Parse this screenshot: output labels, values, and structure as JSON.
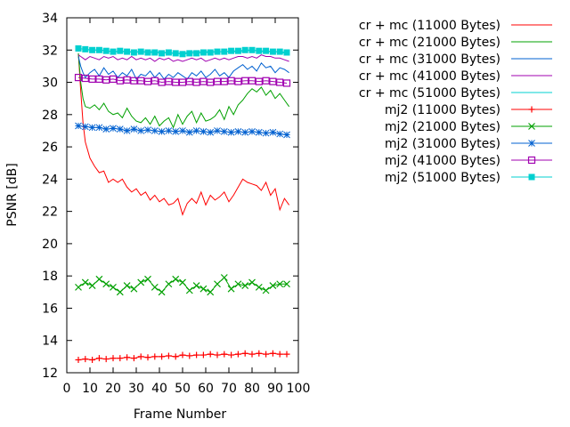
{
  "chart_data": {
    "type": "line",
    "title": "",
    "xlabel": "Frame Number",
    "ylabel": "PSNR [dB]",
    "xlim": [
      0,
      100
    ],
    "ylim": [
      12,
      34
    ],
    "xticks": [
      0,
      10,
      20,
      30,
      40,
      50,
      60,
      70,
      80,
      90,
      100
    ],
    "yticks": [
      12,
      14,
      16,
      18,
      20,
      22,
      24,
      26,
      28,
      30,
      32,
      34
    ],
    "grid": false,
    "legend_position": "top-right, outside plot",
    "series": [
      {
        "name": "cr + mc (11000 Bytes)",
        "color": "#ff0000",
        "marker": "none",
        "x": [
          5,
          6,
          7,
          8,
          10,
          12,
          14,
          16,
          18,
          20,
          22,
          24,
          26,
          28,
          30,
          32,
          34,
          36,
          38,
          40,
          42,
          44,
          46,
          48,
          50,
          52,
          54,
          56,
          58,
          60,
          62,
          64,
          66,
          68,
          70,
          72,
          74,
          76,
          78,
          80,
          82,
          84,
          86,
          88,
          90,
          92,
          94,
          96
        ],
        "y": [
          31.8,
          29.5,
          27.5,
          26.3,
          25.3,
          24.8,
          24.4,
          24.5,
          23.8,
          24.0,
          23.8,
          24.0,
          23.5,
          23.2,
          23.4,
          23.0,
          23.2,
          22.7,
          23.0,
          22.6,
          22.8,
          22.4,
          22.5,
          22.8,
          21.8,
          22.5,
          22.8,
          22.5,
          23.2,
          22.4,
          23.0,
          22.7,
          22.9,
          23.2,
          22.6,
          23.0,
          23.5,
          24.0,
          23.8,
          23.7,
          23.6,
          23.3,
          23.8,
          23.0,
          23.4,
          22.1,
          22.8,
          22.4
        ]
      },
      {
        "name": "cr + mc (21000 Bytes)",
        "color": "#00a000",
        "marker": "none",
        "x": [
          5,
          6,
          7,
          8,
          10,
          12,
          14,
          16,
          18,
          20,
          22,
          24,
          26,
          28,
          30,
          32,
          34,
          36,
          38,
          40,
          42,
          44,
          46,
          48,
          50,
          52,
          54,
          56,
          58,
          60,
          62,
          64,
          66,
          68,
          70,
          72,
          74,
          76,
          78,
          80,
          82,
          84,
          86,
          88,
          90,
          92,
          94,
          96
        ],
        "y": [
          31.8,
          30.0,
          29.0,
          28.5,
          28.4,
          28.6,
          28.3,
          28.7,
          28.2,
          28.0,
          28.1,
          27.8,
          28.4,
          27.9,
          27.6,
          27.5,
          27.8,
          27.4,
          27.9,
          27.3,
          27.6,
          27.8,
          27.2,
          28.0,
          27.4,
          27.9,
          28.2,
          27.5,
          28.1,
          27.6,
          27.7,
          27.9,
          28.3,
          27.7,
          28.5,
          28.0,
          28.6,
          28.9,
          29.3,
          29.6,
          29.4,
          29.7,
          29.2,
          29.5,
          29.0,
          29.3,
          28.9,
          28.5
        ]
      },
      {
        "name": "cr + mc (31000 Bytes)",
        "color": "#0060d0",
        "marker": "none",
        "x": [
          5,
          6,
          7,
          8,
          10,
          12,
          14,
          16,
          18,
          20,
          22,
          24,
          26,
          28,
          30,
          32,
          34,
          36,
          38,
          40,
          42,
          44,
          46,
          48,
          50,
          52,
          54,
          56,
          58,
          60,
          62,
          64,
          66,
          68,
          70,
          72,
          74,
          76,
          78,
          80,
          82,
          84,
          86,
          88,
          90,
          92,
          94,
          96
        ],
        "y": [
          31.6,
          31.0,
          30.6,
          30.3,
          30.6,
          30.8,
          30.4,
          30.9,
          30.5,
          30.7,
          30.3,
          30.6,
          30.4,
          30.8,
          30.2,
          30.5,
          30.4,
          30.7,
          30.3,
          30.6,
          30.2,
          30.5,
          30.3,
          30.6,
          30.4,
          30.2,
          30.6,
          30.4,
          30.7,
          30.3,
          30.5,
          30.8,
          30.4,
          30.6,
          30.3,
          30.7,
          30.9,
          31.1,
          30.8,
          31.0,
          30.7,
          31.2,
          30.9,
          31.0,
          30.6,
          30.9,
          30.8,
          30.6
        ]
      },
      {
        "name": "cr + mc (41000 Bytes)",
        "color": "#a000b0",
        "marker": "none",
        "x": [
          5,
          6,
          7,
          8,
          10,
          12,
          14,
          16,
          18,
          20,
          22,
          24,
          26,
          28,
          30,
          32,
          34,
          36,
          38,
          40,
          42,
          44,
          46,
          48,
          50,
          52,
          54,
          56,
          58,
          60,
          62,
          64,
          66,
          68,
          70,
          72,
          74,
          76,
          78,
          80,
          82,
          84,
          86,
          88,
          90,
          92,
          94,
          96
        ],
        "y": [
          31.7,
          31.6,
          31.5,
          31.4,
          31.6,
          31.5,
          31.4,
          31.6,
          31.5,
          31.6,
          31.4,
          31.5,
          31.4,
          31.6,
          31.4,
          31.5,
          31.4,
          31.5,
          31.3,
          31.5,
          31.4,
          31.5,
          31.3,
          31.4,
          31.3,
          31.4,
          31.5,
          31.4,
          31.5,
          31.3,
          31.4,
          31.5,
          31.4,
          31.5,
          31.4,
          31.5,
          31.6,
          31.6,
          31.5,
          31.6,
          31.5,
          31.7,
          31.6,
          31.6,
          31.5,
          31.5,
          31.4,
          31.3
        ]
      },
      {
        "name": "cr + mc (51000 Bytes)",
        "color": "#00d0d0",
        "marker": "none",
        "x": [
          5,
          10,
          15,
          20,
          25,
          30,
          35,
          40,
          45,
          50,
          55,
          60,
          65,
          70,
          75,
          80,
          85,
          90,
          95
        ],
        "y": [
          32.1,
          32.0,
          32.0,
          31.9,
          31.9,
          31.9,
          31.9,
          31.9,
          31.8,
          31.8,
          31.9,
          31.9,
          31.9,
          31.9,
          31.9,
          32.0,
          31.9,
          31.9,
          31.8
        ]
      },
      {
        "name": "mj2 (11000 Bytes)",
        "color": "#ff0000",
        "marker": "plus",
        "x": [
          5,
          8,
          11,
          14,
          17,
          20,
          23,
          26,
          29,
          32,
          35,
          38,
          41,
          44,
          47,
          50,
          53,
          56,
          59,
          62,
          65,
          68,
          71,
          74,
          77,
          80,
          83,
          86,
          89,
          92,
          95
        ],
        "y": [
          12.8,
          12.85,
          12.8,
          12.9,
          12.85,
          12.9,
          12.9,
          12.95,
          12.9,
          13.0,
          12.95,
          13.0,
          13.0,
          13.05,
          13.0,
          13.1,
          13.05,
          13.1,
          13.1,
          13.15,
          13.1,
          13.15,
          13.1,
          13.15,
          13.2,
          13.15,
          13.2,
          13.15,
          13.2,
          13.15,
          13.15
        ]
      },
      {
        "name": "mj2 (21000 Bytes)",
        "color": "#00a000",
        "marker": "cross",
        "x": [
          5,
          8,
          11,
          14,
          17,
          20,
          23,
          26,
          29,
          32,
          35,
          38,
          41,
          44,
          47,
          50,
          53,
          56,
          59,
          62,
          65,
          68,
          71,
          74,
          77,
          80,
          83,
          86,
          89,
          92,
          95
        ],
        "y": [
          17.3,
          17.6,
          17.4,
          17.8,
          17.5,
          17.3,
          17.0,
          17.4,
          17.2,
          17.6,
          17.8,
          17.3,
          17.0,
          17.5,
          17.8,
          17.6,
          17.1,
          17.4,
          17.2,
          17.0,
          17.5,
          17.9,
          17.2,
          17.5,
          17.4,
          17.6,
          17.3,
          17.1,
          17.4,
          17.5,
          17.5
        ]
      },
      {
        "name": "mj2 (31000 Bytes)",
        "color": "#0060d0",
        "marker": "star",
        "x": [
          5,
          8,
          11,
          14,
          17,
          20,
          23,
          26,
          29,
          32,
          35,
          38,
          41,
          44,
          47,
          50,
          53,
          56,
          59,
          62,
          65,
          68,
          71,
          74,
          77,
          80,
          83,
          86,
          89,
          92,
          95
        ],
        "y": [
          27.3,
          27.25,
          27.2,
          27.2,
          27.1,
          27.15,
          27.1,
          27.0,
          27.1,
          27.0,
          27.05,
          27.0,
          26.95,
          27.0,
          26.95,
          27.0,
          26.9,
          27.0,
          26.95,
          26.9,
          27.0,
          26.95,
          26.9,
          26.95,
          26.9,
          26.95,
          26.9,
          26.85,
          26.9,
          26.8,
          26.75
        ]
      },
      {
        "name": "mj2 (41000 Bytes)",
        "color": "#a000b0",
        "marker": "square",
        "x": [
          5,
          8,
          11,
          14,
          17,
          20,
          23,
          26,
          29,
          32,
          35,
          38,
          41,
          44,
          47,
          50,
          53,
          56,
          59,
          62,
          65,
          68,
          71,
          74,
          77,
          80,
          83,
          86,
          89,
          92,
          95
        ],
        "y": [
          30.3,
          30.25,
          30.2,
          30.2,
          30.15,
          30.2,
          30.1,
          30.15,
          30.1,
          30.1,
          30.05,
          30.1,
          30.0,
          30.05,
          30.0,
          30.0,
          30.05,
          30.0,
          30.05,
          30.0,
          30.05,
          30.05,
          30.1,
          30.05,
          30.1,
          30.1,
          30.05,
          30.1,
          30.05,
          30.0,
          29.95
        ]
      },
      {
        "name": "mj2 (51000 Bytes)",
        "color": "#00d0d0",
        "marker": "filled-square",
        "x": [
          5,
          8,
          11,
          14,
          17,
          20,
          23,
          26,
          29,
          32,
          35,
          38,
          41,
          44,
          47,
          50,
          53,
          56,
          59,
          62,
          65,
          68,
          71,
          74,
          77,
          80,
          83,
          86,
          89,
          92,
          95
        ],
        "y": [
          32.1,
          32.05,
          32.0,
          32.0,
          31.95,
          31.9,
          31.95,
          31.9,
          31.85,
          31.9,
          31.85,
          31.85,
          31.8,
          31.85,
          31.8,
          31.75,
          31.8,
          31.8,
          31.85,
          31.85,
          31.9,
          31.9,
          31.95,
          31.95,
          32.0,
          32.0,
          31.95,
          31.95,
          31.9,
          31.9,
          31.85
        ]
      }
    ]
  }
}
